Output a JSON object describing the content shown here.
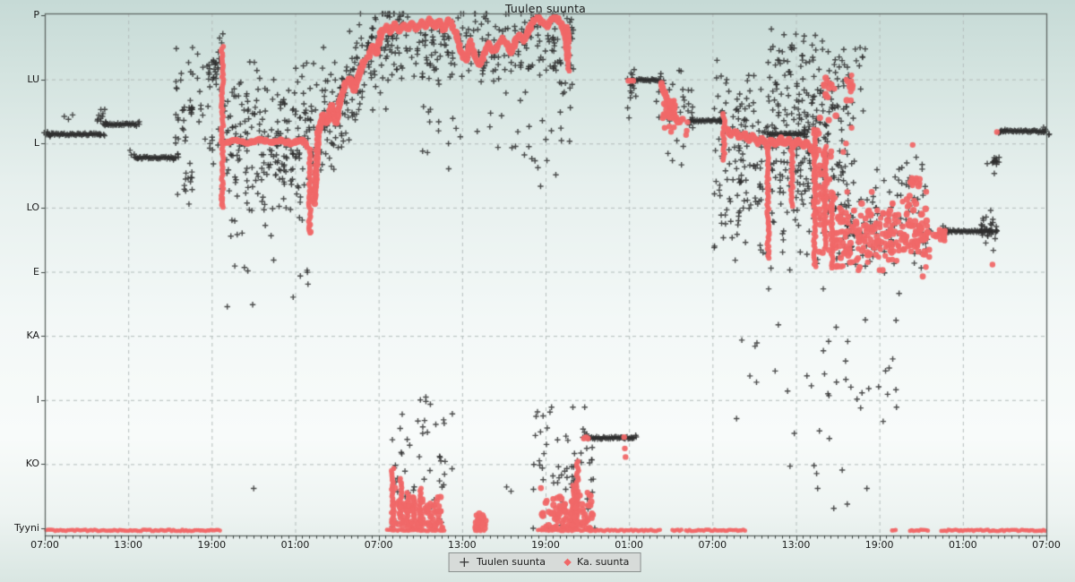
{
  "title": "Tuulen suunta",
  "legend": {
    "series1_label": "Tuulen suunta",
    "series2_label": "Ka. suunta"
  },
  "colors": {
    "plus_series": "#3a3a3a",
    "avg_series": "#f06868",
    "grid": "#b4bdbb",
    "frame": "#606865",
    "tick": "#3c4442",
    "legend_bg": "#d7dbd9",
    "legend_border": "#8a908e"
  },
  "chart_data": {
    "type": "scatter",
    "title": "Tuulen suunta",
    "xlabel": "",
    "ylabel": "",
    "xlim_hours": [
      0,
      72
    ],
    "ylim_degrees": [
      0,
      360
    ],
    "grid": true,
    "legend_position": "bottom-center",
    "x_ticks": [
      "07:00",
      "13:00",
      "19:00",
      "01:00",
      "07:00",
      "13:00",
      "19:00",
      "01:00",
      "07:00",
      "13:00",
      "19:00",
      "01:00",
      "07:00"
    ],
    "x_tick_hours": [
      0,
      6,
      12,
      18,
      24,
      30,
      36,
      42,
      48,
      54,
      60,
      66,
      72
    ],
    "y_ticks": [
      "P",
      "LU",
      "L",
      "LO",
      "E",
      "KA",
      "I",
      "KO",
      "Tyyni"
    ],
    "y_tick_degrees": [
      360,
      315,
      270,
      225,
      180,
      135,
      90,
      45,
      0
    ],
    "series": [
      {
        "name": "Tuulen suunta",
        "marker": "plus",
        "color": "#3a3a3a",
        "bars": [
          [
            0.2,
            4.06,
            276.5
          ],
          [
            4.19,
            6.57,
            283.5
          ],
          [
            6.45,
            9.47,
            260
          ],
          [
            39.1,
            42.35,
            63.5
          ],
          [
            42.2,
            44.28,
            314.5
          ],
          [
            46.4,
            48.67,
            286
          ],
          [
            52.08,
            54.66,
            276.5
          ],
          [
            64.58,
            68.13,
            208.5
          ],
          [
            68.19,
            68.52,
            257.5
          ],
          [
            68.65,
            72,
            278.5
          ]
        ],
        "gauss_clouds": [
          [
            9.4,
            13.2,
            290,
            32,
            55,
            200,
            350
          ],
          [
            9.95,
            10.7,
            293,
            3,
            12,
            282,
            302
          ],
          [
            11.6,
            12.6,
            322,
            6,
            22,
            305,
            338
          ],
          [
            10.0,
            10.6,
            244,
            5,
            12,
            232,
            256
          ],
          [
            12.9,
            19.35,
            268,
            27,
            240,
            196,
            333
          ],
          [
            13.0,
            19.2,
            182,
            12,
            10,
            155,
            205
          ],
          [
            25.9,
            38.0,
            338,
            15,
            250,
            252,
            361
          ],
          [
            26.0,
            37.8,
            275,
            14,
            30,
            240,
            305
          ],
          [
            48.1,
            58.2,
            262,
            34,
            380,
            168,
            352
          ],
          [
            52.0,
            59.0,
            316,
            16,
            80,
            282,
            361
          ],
          [
            56.8,
            63.8,
            206,
            13,
            90,
            172,
            240
          ],
          [
            59.5,
            63.9,
            240,
            10,
            30,
            215,
            262
          ],
          [
            67.3,
            68.45,
            209,
            4,
            26,
            198,
            220
          ],
          [
            43.9,
            46.6,
            298,
            14,
            26,
            270,
            325
          ],
          [
            41.85,
            42.5,
            306,
            9,
            10,
            288,
            322
          ],
          [
            3.75,
            4.35,
            290,
            3,
            8,
            283,
            297
          ],
          [
            24.7,
            29.6,
            40,
            26,
            48,
            0,
            92
          ],
          [
            35.1,
            39.6,
            38,
            26,
            58,
            0,
            85
          ],
          [
            37.85,
            38.35,
            22,
            14,
            18,
            0,
            48
          ],
          [
            49.5,
            61.5,
            112,
            34,
            40,
            28,
            168
          ]
        ],
        "line_clouds": [
          {
            "pts": [
              [
                19.35,
                277
              ],
              [
                20.6,
                296
              ],
              [
                21.9,
                310
              ],
              [
                23.2,
                327
              ],
              [
                24.5,
                348
              ],
              [
                25.85,
                344
              ]
            ],
            "sd": 20,
            "n": 190,
            "lo": 235,
            "hi": 361
          }
        ],
        "points": [
          [
            12.57,
            344
          ],
          [
            12.8,
            347
          ],
          [
            15.02,
            28
          ],
          [
            18.37,
            177
          ],
          [
            13.66,
            184
          ],
          [
            33.2,
            29
          ],
          [
            33.52,
            26
          ],
          [
            56.72,
            14
          ],
          [
            57.69,
            17
          ],
          [
            68.0,
            223
          ],
          [
            68.19,
            195
          ],
          [
            68.26,
            249
          ],
          [
            55.11,
            100
          ],
          [
            55.3,
            44
          ],
          [
            55.56,
            28
          ],
          [
            56.4,
            63
          ],
          [
            54.79,
            107
          ],
          [
            60.27,
            75
          ],
          [
            60.59,
            94
          ],
          [
            61.23,
            85
          ],
          [
            44.8,
            263
          ],
          [
            45.12,
            258
          ],
          [
            45.44,
            272
          ],
          [
            45.77,
            255
          ],
          [
            45.9,
            268
          ],
          [
            41.9,
            295
          ],
          [
            42.0,
            288
          ],
          [
            42.1,
            302
          ],
          [
            1.4,
            289
          ],
          [
            1.7,
            287
          ],
          [
            2.0,
            290
          ],
          [
            27.4,
            89
          ],
          [
            27.72,
            87
          ],
          [
            33.84,
            268
          ],
          [
            34.48,
            262
          ],
          [
            35.45,
            253
          ],
          [
            36.1,
            258
          ],
          [
            36.74,
            248
          ],
          [
            35.77,
            286
          ],
          [
            36.42,
            279
          ],
          [
            37.06,
            292
          ]
        ]
      },
      {
        "name": "Ka. suunta",
        "marker": "circle",
        "color": "#f06868",
        "polylines": [
          [
            [
              12.95,
              271
            ],
            [
              13.8,
              272
            ],
            [
              14.6,
              270
            ],
            [
              15.4,
              273
            ],
            [
              16.2,
              271
            ],
            [
              17.0,
              272
            ],
            [
              17.8,
              270
            ],
            [
              18.5,
              273
            ],
            [
              18.95,
              267
            ]
          ],
          [
            [
              19.35,
              228
            ],
            [
              19.5,
              252
            ],
            [
              19.66,
              277
            ],
            [
              20.0,
              290
            ],
            [
              20.3,
              284
            ],
            [
              20.63,
              297
            ],
            [
              20.95,
              284
            ],
            [
              21.27,
              302
            ],
            [
              21.6,
              312
            ],
            [
              21.92,
              316
            ],
            [
              22.24,
              307
            ],
            [
              22.56,
              318
            ],
            [
              22.88,
              326
            ],
            [
              23.2,
              330
            ],
            [
              23.52,
              338
            ],
            [
              23.85,
              333
            ],
            [
              24.17,
              347
            ],
            [
              24.49,
              352
            ],
            [
              24.81,
              348
            ],
            [
              25.14,
              354
            ],
            [
              25.46,
              349
            ],
            [
              25.78,
              353
            ],
            [
              26.1,
              350
            ],
            [
              26.43,
              355
            ],
            [
              26.75,
              350
            ],
            [
              27.07,
              356
            ],
            [
              27.4,
              352
            ],
            [
              27.72,
              357
            ],
            [
              28.04,
              352
            ],
            [
              28.36,
              356
            ],
            [
              28.68,
              350
            ],
            [
              29.0,
              357
            ],
            [
              29.33,
              352
            ],
            [
              29.65,
              344
            ],
            [
              29.97,
              334
            ],
            [
              30.3,
              328
            ],
            [
              30.62,
              342
            ],
            [
              30.94,
              330
            ],
            [
              31.26,
              325
            ],
            [
              31.58,
              332
            ],
            [
              31.91,
              340
            ],
            [
              32.23,
              334
            ],
            [
              32.55,
              338
            ],
            [
              32.87,
              344
            ],
            [
              33.2,
              340
            ],
            [
              33.52,
              334
            ],
            [
              33.84,
              342
            ],
            [
              34.16,
              346
            ],
            [
              34.48,
              342
            ],
            [
              34.81,
              350
            ],
            [
              35.13,
              356
            ],
            [
              35.45,
              359
            ],
            [
              35.77,
              355
            ],
            [
              36.1,
              352
            ],
            [
              36.42,
              357
            ],
            [
              36.74,
              359
            ],
            [
              37.06,
              355
            ],
            [
              37.26,
              352
            ],
            [
              37.45,
              344
            ],
            [
              37.58,
              330
            ]
          ],
          [
            [
              44.28,
              312
            ],
            [
              44.6,
              305
            ],
            [
              44.9,
              295
            ],
            [
              45.2,
              290
            ],
            [
              45.5,
              285
            ],
            [
              45.77,
              287
            ]
          ],
          [
            [
              48.99,
              281
            ],
            [
              49.31,
              276
            ],
            [
              49.63,
              279
            ],
            [
              49.95,
              274
            ],
            [
              50.28,
              277
            ],
            [
              50.6,
              272
            ],
            [
              50.92,
              276
            ],
            [
              51.24,
              270
            ],
            [
              51.56,
              274
            ],
            [
              51.89,
              268
            ],
            [
              52.21,
              273
            ],
            [
              52.53,
              269
            ],
            [
              52.85,
              274
            ],
            [
              53.17,
              270
            ],
            [
              53.5,
              273
            ],
            [
              53.82,
              268
            ],
            [
              54.14,
              272
            ],
            [
              54.46,
              268
            ],
            [
              54.79,
              271
            ],
            [
              55.11,
              266
            ],
            [
              55.43,
              262
            ]
          ]
        ],
        "streaks": [
          [
            12.76,
            225,
            338
          ],
          [
            19.05,
            206,
            266
          ],
          [
            37.62,
            320,
            352
          ],
          [
            48.82,
            258,
            291
          ],
          [
            52.0,
            188,
            268
          ],
          [
            53.7,
            225,
            270
          ],
          [
            55.35,
            182,
            280
          ],
          [
            56.1,
            195,
            268
          ],
          [
            56.6,
            182,
            235
          ],
          [
            25.0,
            2,
            42
          ],
          [
            25.6,
            8,
            35
          ],
          [
            26.1,
            1,
            25
          ],
          [
            26.55,
            4,
            20
          ],
          [
            27.0,
            1,
            28
          ],
          [
            37.95,
            1,
            20
          ],
          [
            38.05,
            2,
            30
          ],
          [
            38.3,
            5,
            47
          ]
        ],
        "gauss_clouds": [
          [
            56.8,
            63.6,
            206,
            12,
            230,
            176,
            236
          ],
          [
            24.9,
            28.6,
            8,
            7,
            90,
            0,
            30
          ],
          [
            35.6,
            39.4,
            9,
            8,
            110,
            0,
            34
          ],
          [
            30.95,
            31.7,
            4,
            3,
            25,
            0,
            12
          ],
          [
            44.4,
            45.3,
            291,
            6,
            25,
            278,
            305
          ],
          [
            63.85,
            64.75,
            207,
            3,
            14,
            200,
            214
          ],
          [
            62.1,
            63.0,
            241,
            4,
            12,
            232,
            250
          ],
          [
            55.3,
            56.6,
            240,
            22,
            50,
            185,
            288
          ],
          [
            57.6,
            58.1,
            310,
            5,
            12,
            300,
            320
          ],
          [
            55.9,
            56.9,
            300,
            10,
            12,
            282,
            318
          ]
        ],
        "points": [
          [
            38.75,
            63
          ],
          [
            38.9,
            64
          ],
          [
            39.05,
            63
          ],
          [
            41.65,
            64
          ],
          [
            41.7,
            56
          ],
          [
            41.75,
            50
          ],
          [
            41.95,
            314
          ],
          [
            42.1,
            314
          ],
          [
            42.3,
            314
          ],
          [
            46.2,
            285
          ],
          [
            46.15,
            279
          ],
          [
            46.1,
            276
          ],
          [
            62.39,
            269
          ],
          [
            68.13,
            185
          ],
          [
            68.45,
            278
          ],
          [
            19.08,
            213
          ],
          [
            19.12,
            208
          ],
          [
            12.7,
            231
          ],
          [
            12.74,
            227
          ],
          [
            58.0,
            281
          ],
          [
            57.4,
            264
          ],
          [
            57.6,
            270
          ]
        ],
        "bottom_rows": [
          [
            0.1,
            12.63
          ],
          [
            24.6,
            28.81
          ],
          [
            30.94,
            31.71
          ],
          [
            35.45,
            39.32
          ],
          [
            39.2,
            44.3
          ],
          [
            45.12,
            45.77
          ],
          [
            46.09,
            50.4
          ],
          [
            60.91,
            61.23
          ],
          [
            62.2,
            63.49
          ],
          [
            64.45,
            71.95
          ]
        ]
      }
    ]
  }
}
